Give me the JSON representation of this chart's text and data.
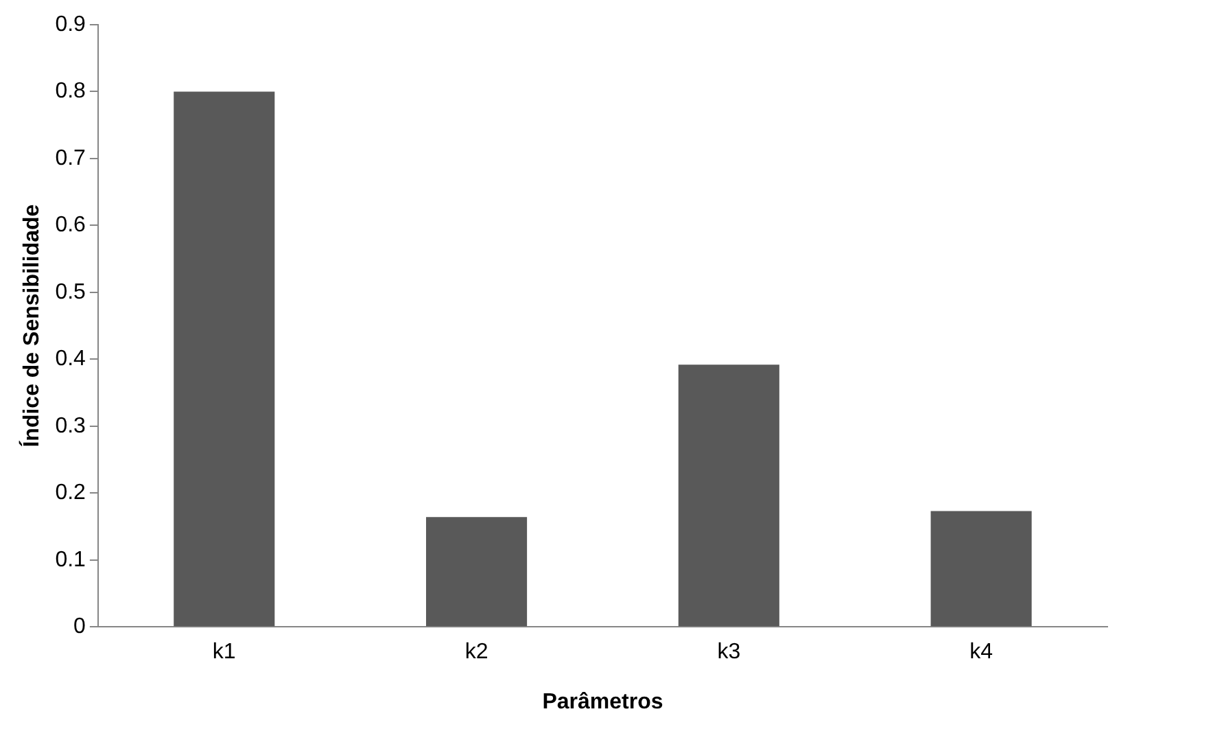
{
  "chart_data": {
    "type": "bar",
    "xlabel": "Parâmetros",
    "ylabel": "Índice de Sensibilidade",
    "categories": [
      "k1",
      "k2",
      "k3",
      "k4"
    ],
    "values": [
      0.8,
      0.164,
      0.392,
      0.173
    ],
    "color": "#595959",
    "ylim": [
      0,
      0.9
    ],
    "yticks": [
      0,
      0.1,
      0.2,
      0.3,
      0.4,
      0.5,
      0.6,
      0.7,
      0.8,
      0.9
    ],
    "grid": false,
    "legend": false
  }
}
